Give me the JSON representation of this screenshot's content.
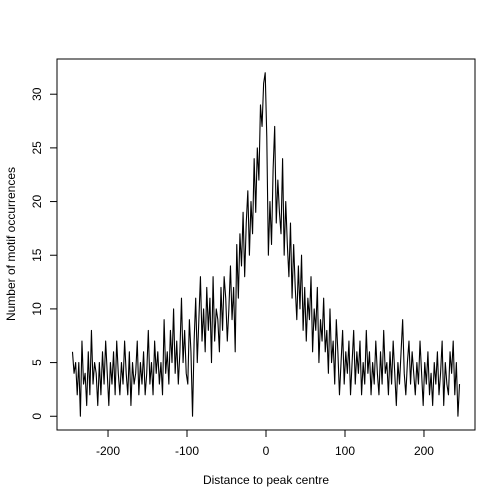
{
  "chart_data": {
    "type": "line",
    "xlabel": "Distance to peak centre",
    "ylabel": "Number of motif occurrences",
    "color": "#000000",
    "xlim": [
      -264.6,
      264.6
    ],
    "ylim": [
      -1.28,
      33.28
    ],
    "xticks": [
      -200,
      -100,
      0,
      100,
      200
    ],
    "yticks": [
      0,
      5,
      10,
      15,
      20,
      25,
      30
    ],
    "x": [
      -245,
      -243,
      -241,
      -239,
      -237,
      -235,
      -233,
      -231,
      -229,
      -227,
      -225,
      -223,
      -221,
      -219,
      -217,
      -215,
      -213,
      -211,
      -209,
      -207,
      -205,
      -203,
      -201,
      -199,
      -197,
      -195,
      -193,
      -191,
      -189,
      -187,
      -185,
      -183,
      -181,
      -179,
      -177,
      -175,
      -173,
      -171,
      -169,
      -167,
      -165,
      -163,
      -161,
      -159,
      -157,
      -155,
      -153,
      -151,
      -149,
      -147,
      -145,
      -143,
      -141,
      -139,
      -137,
      -135,
      -133,
      -131,
      -129,
      -127,
      -125,
      -123,
      -121,
      -119,
      -117,
      -115,
      -113,
      -111,
      -109,
      -107,
      -105,
      -103,
      -101,
      -99,
      -97,
      -95,
      -93,
      -91,
      -89,
      -87,
      -85,
      -83,
      -81,
      -79,
      -77,
      -75,
      -73,
      -71,
      -69,
      -67,
      -65,
      -63,
      -61,
      -59,
      -57,
      -55,
      -53,
      -51,
      -49,
      -47,
      -45,
      -43,
      -41,
      -39,
      -37,
      -35,
      -33,
      -31,
      -29,
      -27,
      -25,
      -23,
      -21,
      -19,
      -17,
      -15,
      -13,
      -11,
      -9,
      -7,
      -5,
      -3,
      -1,
      1,
      3,
      5,
      7,
      9,
      11,
      13,
      15,
      17,
      19,
      21,
      23,
      25,
      27,
      29,
      31,
      33,
      35,
      37,
      39,
      41,
      43,
      45,
      47,
      49,
      51,
      53,
      55,
      57,
      59,
      61,
      63,
      65,
      67,
      69,
      71,
      73,
      75,
      77,
      79,
      81,
      83,
      85,
      87,
      89,
      91,
      93,
      95,
      97,
      99,
      101,
      103,
      105,
      107,
      109,
      111,
      113,
      115,
      117,
      119,
      121,
      123,
      125,
      127,
      129,
      131,
      133,
      135,
      137,
      139,
      141,
      143,
      145,
      147,
      149,
      151,
      153,
      155,
      157,
      159,
      161,
      163,
      165,
      167,
      169,
      171,
      173,
      175,
      177,
      179,
      181,
      183,
      185,
      187,
      189,
      191,
      193,
      195,
      197,
      199,
      201,
      203,
      205,
      207,
      209,
      211,
      213,
      215,
      217,
      219,
      221,
      223,
      225,
      227,
      229,
      231,
      233,
      235,
      237,
      239,
      241,
      243,
      245
    ],
    "values": [
      6,
      4,
      5,
      2,
      5,
      0,
      7,
      3,
      4,
      1,
      6,
      2,
      8,
      3,
      5,
      4,
      1,
      5,
      2,
      6,
      3,
      7,
      4,
      1,
      5,
      3,
      6,
      2,
      7,
      4,
      2,
      5,
      3,
      7,
      4,
      2,
      6,
      1,
      5,
      3,
      4,
      7,
      2,
      5,
      3,
      6,
      2,
      4,
      8,
      3,
      5,
      2,
      7,
      4,
      6,
      3,
      5,
      2,
      9,
      4,
      6,
      3,
      8,
      5,
      10,
      4,
      7,
      3,
      6,
      11,
      5,
      8,
      4,
      3,
      9,
      6,
      0,
      7,
      11,
      5,
      9,
      13,
      7,
      10,
      6,
      12,
      8,
      11,
      5,
      13,
      7,
      10,
      9,
      6,
      12,
      8,
      13,
      11,
      7,
      10,
      14,
      9,
      12,
      6,
      16,
      11,
      17,
      14,
      19,
      13,
      18,
      21,
      15,
      20,
      17,
      24,
      19,
      25,
      22,
      29,
      27,
      31,
      32,
      26,
      15,
      20,
      16,
      23,
      27,
      18,
      22,
      19,
      17,
      24,
      15,
      20,
      16,
      13,
      18,
      11,
      16,
      12,
      9,
      14,
      10,
      15,
      8,
      12,
      7,
      11,
      9,
      13,
      6,
      10,
      8,
      12,
      5,
      9,
      7,
      11,
      6,
      8,
      4,
      10,
      5,
      7,
      3,
      9,
      6,
      2,
      5,
      8,
      3,
      6,
      4,
      7,
      2,
      5,
      8,
      3,
      6,
      4,
      7,
      2,
      5,
      3,
      8,
      4,
      6,
      2,
      5,
      3,
      7,
      4,
      2,
      6,
      3,
      8,
      4,
      5,
      2,
      6,
      3,
      7,
      4,
      1,
      5,
      3,
      6,
      9,
      4,
      2,
      5,
      7,
      3,
      6,
      4,
      2,
      5,
      3,
      7,
      4,
      1,
      5,
      3,
      6,
      2,
      4,
      1,
      5,
      3,
      6,
      2,
      4,
      7,
      1,
      5,
      3,
      2,
      6,
      4,
      7,
      2,
      5,
      0,
      3
    ]
  }
}
